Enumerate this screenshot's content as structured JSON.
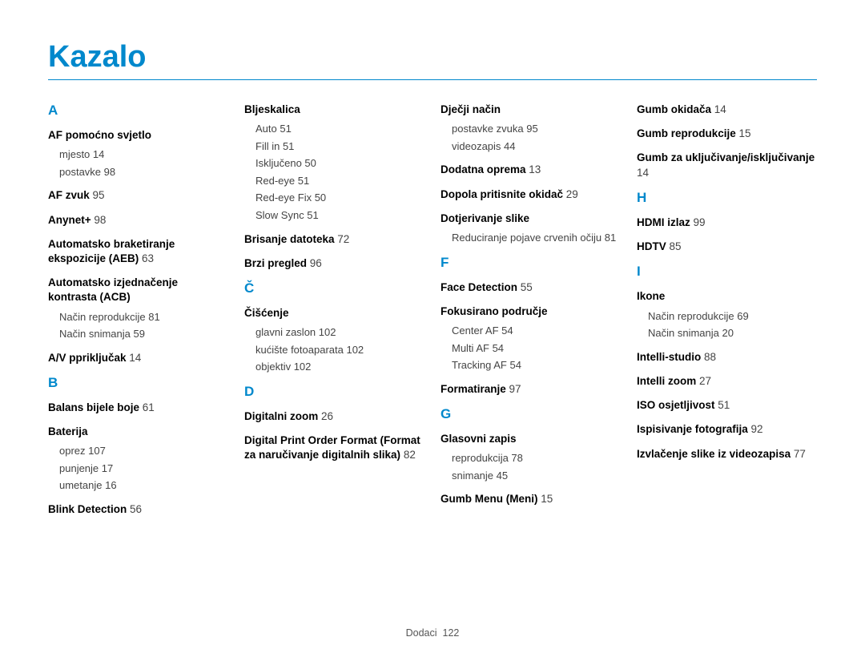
{
  "title": "Kazalo",
  "footer": {
    "label": "Dodaci",
    "page": "122"
  },
  "colors": {
    "accent": "#0088cc",
    "text": "#000000",
    "subtext": "#444444",
    "background": "#ffffff"
  },
  "columns": [
    {
      "sections": [
        {
          "letter": "A",
          "entries": [
            {
              "label": "AF pomoćno svjetlo",
              "subs": [
                {
                  "label": "mjesto",
                  "pg": "14"
                },
                {
                  "label": "postavke",
                  "pg": "98"
                }
              ]
            },
            {
              "label": "AF zvuk",
              "pg": "95"
            },
            {
              "label": "Anynet+",
              "pg": "98"
            },
            {
              "label": "Automatsko braketiranje ekspozicije (AEB)",
              "pg": "63"
            },
            {
              "label": "Automatsko izjednačenje kontrasta (ACB)",
              "subs": [
                {
                  "label": "Način reprodukcije",
                  "pg": "81"
                },
                {
                  "label": "Način snimanja",
                  "pg": "59"
                }
              ]
            },
            {
              "label": "A/V ppriključak",
              "pg": "14"
            }
          ]
        },
        {
          "letter": "B",
          "entries": [
            {
              "label": "Balans bijele boje",
              "pg": "61"
            },
            {
              "label": "Baterija",
              "subs": [
                {
                  "label": "oprez",
                  "pg": "107"
                },
                {
                  "label": "punjenje",
                  "pg": "17"
                },
                {
                  "label": "umetanje",
                  "pg": "16"
                }
              ]
            },
            {
              "label": "Blink Detection",
              "pg": "56"
            }
          ]
        }
      ]
    },
    {
      "sections": [
        {
          "letter": "",
          "entries": [
            {
              "label": "Bljeskalica",
              "subs": [
                {
                  "label": "Auto",
                  "pg": "51"
                },
                {
                  "label": "Fill in",
                  "pg": "51"
                },
                {
                  "label": "Isključeno",
                  "pg": "50"
                },
                {
                  "label": "Red-eye",
                  "pg": "51"
                },
                {
                  "label": "Red-eye Fix",
                  "pg": "50"
                },
                {
                  "label": "Slow Sync",
                  "pg": "51"
                }
              ]
            },
            {
              "label": "Brisanje datoteka",
              "pg": "72"
            },
            {
              "label": "Brzi pregled",
              "pg": "96"
            }
          ]
        },
        {
          "letter": "Č",
          "entries": [
            {
              "label": "Čišćenje",
              "subs": [
                {
                  "label": "glavni zaslon",
                  "pg": "102"
                },
                {
                  "label": "kućište fotoaparata",
                  "pg": "102"
                },
                {
                  "label": "objektiv",
                  "pg": "102"
                }
              ]
            }
          ]
        },
        {
          "letter": "D",
          "entries": [
            {
              "label": "Digitalni zoom",
              "pg": "26"
            },
            {
              "label": "Digital Print Order Format (Format za naručivanje digitalnih slika)",
              "pg": "82"
            }
          ]
        }
      ]
    },
    {
      "sections": [
        {
          "letter": "",
          "entries": [
            {
              "label": "Dječji način",
              "subs": [
                {
                  "label": "postavke zvuka",
                  "pg": "95"
                },
                {
                  "label": "videozapis",
                  "pg": "44"
                }
              ]
            },
            {
              "label": "Dodatna oprema",
              "pg": "13"
            },
            {
              "label": "Dopola pritisnite okidač",
              "pg": "29"
            },
            {
              "label": "Dotjerivanje slike",
              "subs": [
                {
                  "label": "Reduciranje pojave crvenih očiju",
                  "pg": "81"
                }
              ]
            }
          ]
        },
        {
          "letter": "F",
          "entries": [
            {
              "label": "Face Detection",
              "pg": "55"
            },
            {
              "label": "Fokusirano područje",
              "subs": [
                {
                  "label": "Center AF",
                  "pg": "54"
                },
                {
                  "label": "Multi AF",
                  "pg": "54"
                },
                {
                  "label": "Tracking AF",
                  "pg": "54"
                }
              ]
            },
            {
              "label": "Formatiranje",
              "pg": "97"
            }
          ]
        },
        {
          "letter": "G",
          "entries": [
            {
              "label": "Glasovni zapis",
              "subs": [
                {
                  "label": "reprodukcija",
                  "pg": "78"
                },
                {
                  "label": "snimanje",
                  "pg": "45"
                }
              ]
            },
            {
              "label": "Gumb Menu (Meni)",
              "pg": "15"
            }
          ]
        }
      ]
    },
    {
      "sections": [
        {
          "letter": "",
          "entries": [
            {
              "label": "Gumb okidača",
              "pg": "14"
            },
            {
              "label": "Gumb reprodukcije",
              "pg": "15"
            },
            {
              "label": "Gumb za uključivanje/isključivanje",
              "pg": "14"
            }
          ]
        },
        {
          "letter": "H",
          "entries": [
            {
              "label": "HDMI izlaz",
              "pg": "99"
            },
            {
              "label": "HDTV",
              "pg": "85"
            }
          ]
        },
        {
          "letter": "I",
          "entries": [
            {
              "label": "Ikone",
              "subs": [
                {
                  "label": "Način reprodukcije",
                  "pg": "69"
                },
                {
                  "label": "Način snimanja",
                  "pg": "20"
                }
              ]
            },
            {
              "label": "Intelli-studio",
              "pg": "88"
            },
            {
              "label": "Intelli zoom",
              "pg": "27"
            },
            {
              "label": "ISO osjetljivost",
              "pg": "51"
            },
            {
              "label": "Ispisivanje fotografija",
              "pg": "92"
            },
            {
              "label": "Izvlačenje slike iz videozapisa",
              "pg": "77"
            }
          ]
        }
      ]
    }
  ]
}
